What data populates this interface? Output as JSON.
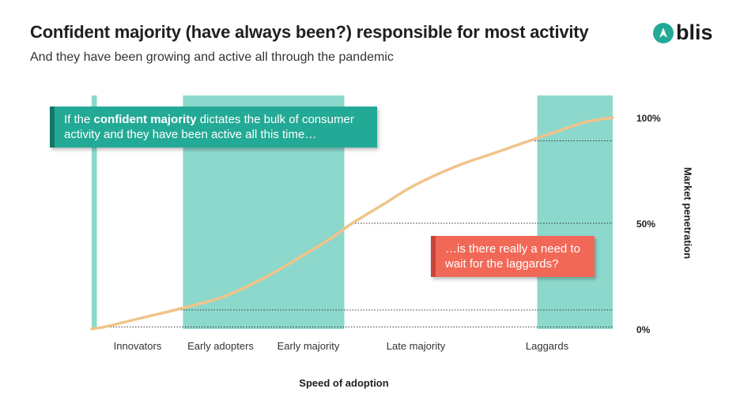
{
  "header": {
    "title": "Confident majority (have always been?) responsible for most activity",
    "subtitle": "And they have been growing and active all through the pandemic"
  },
  "logo": {
    "text": "blis",
    "icon": "blis-logo-icon",
    "color": "#23aa96"
  },
  "callouts": {
    "green": {
      "prefix": "If the ",
      "bold": "confident majority",
      "suffix": " dictates the bulk of consumer activity and they have been active all this time…",
      "color": "#23aa96"
    },
    "red": {
      "text": "…is there really a need to wait for the laggards?",
      "color": "#f16857"
    }
  },
  "chart_data": {
    "type": "line",
    "title": "",
    "xlabel": "Speed of adoption",
    "ylabel": "Market penetration",
    "ylim": [
      0,
      100
    ],
    "grid": false,
    "categories": [
      "Innovators",
      "Early adopters",
      "Early majority",
      "Late majority",
      "Laggards"
    ],
    "category_bounds": [
      [
        0,
        2.5
      ],
      [
        2.5,
        16
      ],
      [
        16,
        50
      ],
      [
        50,
        84
      ],
      [
        84,
        100
      ]
    ],
    "highlighted_categories": [
      "Innovators",
      "Early majority",
      "Laggards"
    ],
    "y_ticks": [
      {
        "value": 0,
        "label": "0%"
      },
      {
        "value": 50,
        "label": "50%"
      },
      {
        "value": 100,
        "label": "100%"
      }
    ],
    "reference_lines": [
      2.5,
      16,
      50,
      84
    ],
    "series": [
      {
        "values": [
          [
            0,
            0
          ],
          [
            2.5,
            1
          ],
          [
            5,
            2.5
          ],
          [
            10,
            5.5
          ],
          [
            16,
            9
          ],
          [
            25,
            15
          ],
          [
            33,
            24
          ],
          [
            40,
            34
          ],
          [
            46,
            43
          ],
          [
            50,
            50
          ],
          [
            56,
            59
          ],
          [
            62,
            68
          ],
          [
            70,
            77
          ],
          [
            77,
            83
          ],
          [
            84,
            89
          ],
          [
            90,
            94
          ],
          [
            95,
            98
          ],
          [
            100,
            100
          ]
        ],
        "color": "#f1c38a"
      }
    ],
    "band_color": "#8dd8cc",
    "line_color": "#f1c38a"
  }
}
